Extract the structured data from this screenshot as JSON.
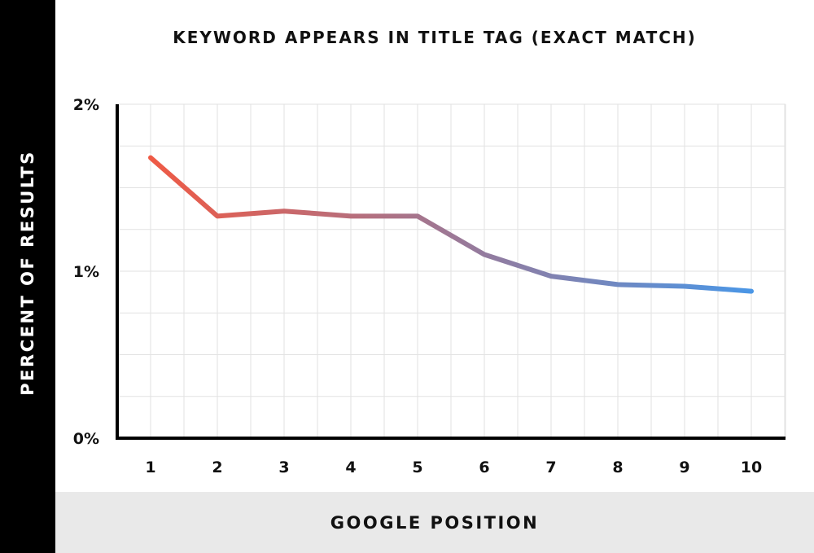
{
  "chart_data": {
    "type": "line",
    "title": "KEYWORD APPEARS IN TITLE TAG (EXACT MATCH)",
    "xlabel": "GOOGLE POSITION",
    "ylabel": "PERCENT OF RESULTS",
    "categories": [
      "1",
      "2",
      "3",
      "4",
      "5",
      "6",
      "7",
      "8",
      "9",
      "10"
    ],
    "series": [
      {
        "values": [
          1.68,
          1.33,
          1.36,
          1.33,
          1.33,
          1.1,
          0.97,
          0.92,
          0.91,
          0.88
        ]
      }
    ],
    "y_ticks": [
      "0%",
      "1%",
      "2%"
    ],
    "ylim": [
      0,
      2
    ],
    "grid": true,
    "colors": {
      "start": "#ef5a45",
      "end": "#4a96e6",
      "axis": "#000000",
      "grid": "#e2e2e2"
    }
  }
}
